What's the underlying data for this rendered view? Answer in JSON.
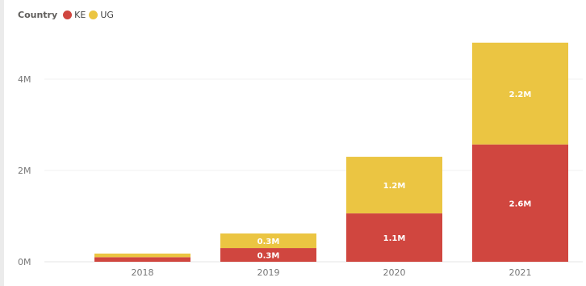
{
  "chart_data": {
    "type": "bar",
    "stacked": true,
    "categories": [
      "2018",
      "2019",
      "2020",
      "2021"
    ],
    "series": [
      {
        "name": "KE",
        "color": "#d0463f",
        "values": [
          0.1,
          0.3,
          1.06,
          2.57
        ],
        "labels": [
          "",
          "0.3M",
          "1.1M",
          "2.6M"
        ]
      },
      {
        "name": "UG",
        "color": "#ebc542",
        "values": [
          0.08,
          0.32,
          1.24,
          2.23
        ],
        "labels": [
          "",
          "0.3M",
          "1.2M",
          "2.2M"
        ]
      }
    ],
    "legend": {
      "title": "Country",
      "position": "top-left"
    },
    "y_ticks": [
      {
        "value": 0,
        "label": "0M"
      },
      {
        "value": 2,
        "label": "2M"
      },
      {
        "value": 4,
        "label": "4M"
      }
    ],
    "ylim": [
      0,
      5
    ],
    "grid": true,
    "xlabel": "",
    "ylabel": ""
  }
}
